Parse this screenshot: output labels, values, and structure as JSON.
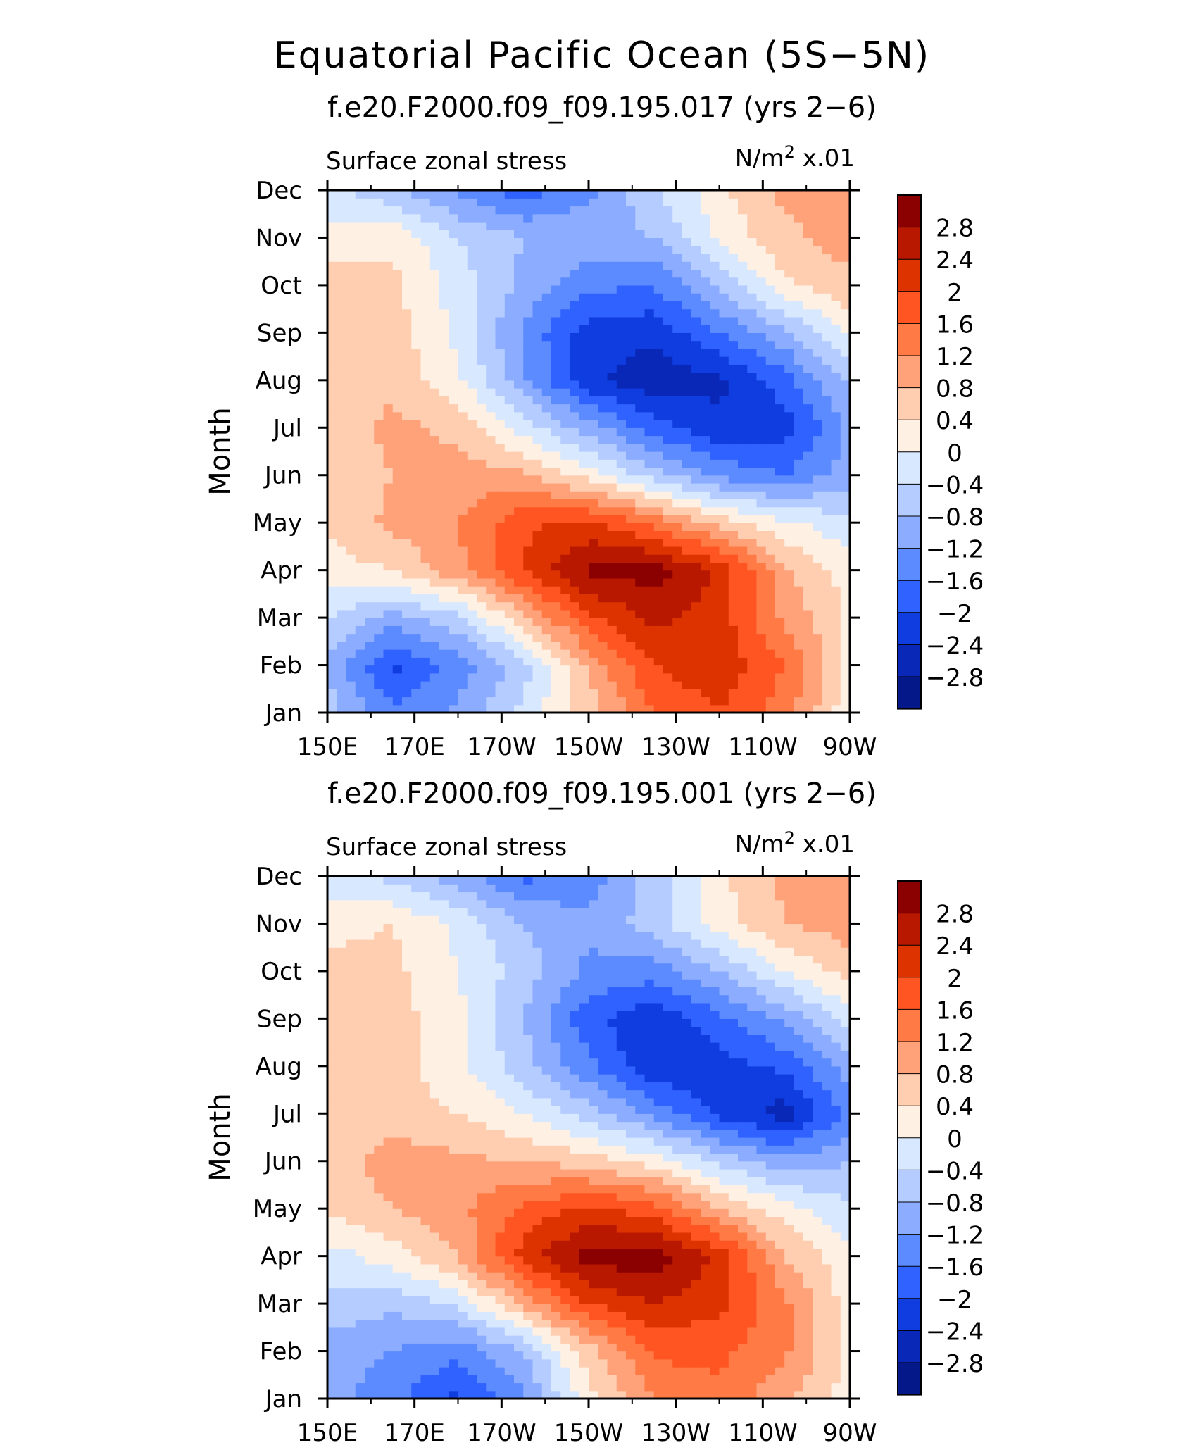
{
  "title": "Equatorial Pacific Ocean (5S−5N)",
  "colorbar": {
    "levels": [
      "2.8",
      "2.4",
      "2",
      "1.6",
      "1.2",
      "0.8",
      "0.4",
      "0",
      "−0.4",
      "−0.8",
      "−1.2",
      "−1.6",
      "−2",
      "−2.4",
      "−2.8"
    ],
    "colors": [
      "#8b0000",
      "#b81800",
      "#dd3300",
      "#ff5522",
      "#ff7a44",
      "#ffa27a",
      "#ffcdb0",
      "#fff0e4",
      "#d8e8ff",
      "#b4ccff",
      "#8cadff",
      "#5c8aff",
      "#2f62ff",
      "#0f3de0",
      "#0a28b8",
      "#05188a"
    ]
  },
  "chart_data": [
    {
      "type": "heatmap",
      "subtitle": "f.e20.F2000.f09_f09.195.017 (yrs 2−6)",
      "variable": "Surface zonal stress",
      "units_base": "N/m",
      "units_exp": "2",
      "units_scale": "x.01",
      "ylabel": "Month",
      "x_ticks": [
        "150E",
        "170E",
        "170W",
        "150W",
        "130W",
        "110W",
        "90W"
      ],
      "y_ticks": [
        "Jan",
        "Feb",
        "Mar",
        "Apr",
        "May",
        "Jun",
        "Jul",
        "Aug",
        "Sep",
        "Oct",
        "Nov",
        "Dec"
      ],
      "xlim": [
        150,
        270
      ],
      "ylim": [
        1,
        12
      ],
      "grid_lon": [
        150,
        165,
        180,
        195,
        210,
        225,
        240,
        255,
        270
      ],
      "values": [
        [
          -0.6,
          -1.5,
          -1.1,
          -0.3,
          0.6,
          1.6,
          2.0,
          1.4,
          0.1
        ],
        [
          -0.9,
          -2.1,
          -1.4,
          -0.6,
          0.9,
          2.0,
          2.3,
          1.6,
          0.3
        ],
        [
          -0.4,
          -1.0,
          -0.5,
          0.7,
          1.9,
          2.5,
          2.2,
          1.1,
          0.3
        ],
        [
          0.2,
          0.4,
          1.1,
          2.0,
          2.9,
          3.0,
          2.3,
          0.9,
          0.2
        ],
        [
          0.5,
          0.9,
          1.2,
          1.9,
          2.1,
          1.5,
          0.6,
          0.1,
          -0.3
        ],
        [
          0.5,
          0.8,
          1.0,
          0.9,
          0.2,
          -0.6,
          -1.3,
          -1.6,
          -1.0
        ],
        [
          0.6,
          0.9,
          0.7,
          -0.2,
          -1.0,
          -1.8,
          -2.3,
          -2.2,
          -1.1
        ],
        [
          0.6,
          0.7,
          0.1,
          -1.1,
          -2.3,
          -2.7,
          -2.5,
          -1.8,
          -0.7
        ],
        [
          0.5,
          0.6,
          -0.1,
          -1.3,
          -2.2,
          -2.3,
          -1.6,
          -0.9,
          0.1
        ],
        [
          0.6,
          0.5,
          -0.2,
          -0.9,
          -1.5,
          -1.6,
          -0.7,
          0.3,
          0.7
        ],
        [
          0.2,
          0.3,
          -0.4,
          -0.8,
          -0.9,
          -0.8,
          0.1,
          0.7,
          1.0
        ],
        [
          -0.3,
          -0.7,
          -1.3,
          -1.8,
          -1.3,
          -0.5,
          0.3,
          0.9,
          0.8
        ]
      ]
    },
    {
      "type": "heatmap",
      "subtitle": "f.e20.F2000.f09_f09.195.001 (yrs 2−6)",
      "variable": "Surface zonal stress",
      "units_base": "N/m",
      "units_exp": "2",
      "units_scale": "x.01",
      "ylabel": "Month",
      "x_ticks": [
        "150E",
        "170E",
        "170W",
        "150W",
        "130W",
        "110W",
        "90W"
      ],
      "y_ticks": [
        "Jan",
        "Feb",
        "Mar",
        "Apr",
        "May",
        "Jun",
        "Jul",
        "Aug",
        "Sep",
        "Oct",
        "Nov",
        "Dec"
      ],
      "xlim": [
        150,
        270
      ],
      "ylim": [
        1,
        12
      ],
      "grid_lon": [
        150,
        165,
        180,
        195,
        210,
        225,
        240,
        255,
        270
      ],
      "values": [
        [
          -1.0,
          -1.5,
          -2.1,
          -1.3,
          0.3,
          1.2,
          1.5,
          0.9,
          0.2
        ],
        [
          -1.0,
          -1.2,
          -1.5,
          -0.8,
          0.6,
          1.7,
          1.7,
          1.3,
          0.3
        ],
        [
          -0.5,
          -0.7,
          -0.3,
          0.9,
          2.0,
          2.4,
          2.1,
          1.3,
          0.2
        ],
        [
          -0.2,
          0.2,
          0.8,
          2.2,
          3.0,
          3.0,
          2.3,
          0.8,
          0.1
        ],
        [
          0.5,
          0.8,
          1.1,
          1.7,
          2.1,
          1.8,
          0.8,
          0.2,
          -0.3
        ],
        [
          0.6,
          1.0,
          0.9,
          0.8,
          0.6,
          0.2,
          -0.5,
          -1.1,
          -0.8
        ],
        [
          0.5,
          0.6,
          0.4,
          0.0,
          -0.6,
          -1.3,
          -2.1,
          -2.6,
          -1.5
        ],
        [
          0.6,
          0.6,
          0.1,
          -0.6,
          -1.5,
          -2.4,
          -2.2,
          -1.9,
          -1.0
        ],
        [
          0.5,
          0.6,
          0.1,
          -0.8,
          -1.9,
          -2.3,
          -1.7,
          -1.1,
          -0.2
        ],
        [
          0.5,
          0.5,
          0.0,
          -0.6,
          -1.3,
          -1.4,
          -0.8,
          0.0,
          0.6
        ],
        [
          0.3,
          0.4,
          -0.1,
          -0.8,
          -1.1,
          -0.6,
          0.2,
          0.8,
          1.0
        ],
        [
          -0.2,
          -0.5,
          -1.0,
          -1.7,
          -1.4,
          -0.6,
          0.3,
          0.9,
          0.8
        ]
      ]
    }
  ]
}
